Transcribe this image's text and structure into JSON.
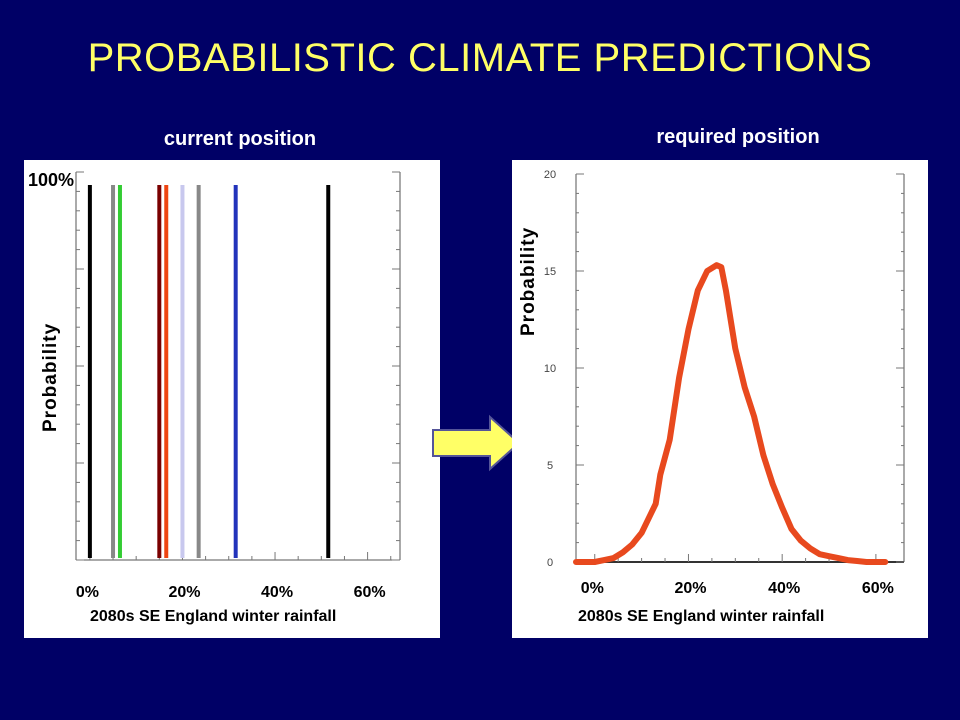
{
  "slide_title": "PROBABILISTIC CLIMATE PREDICTIONS",
  "arrow_icon": "right-arrow-icon",
  "colors": {
    "background": "#000066",
    "title": "#ffff66",
    "arrow_fill": "#ffff66",
    "arrow_stroke": "#555599",
    "curve": "#e8491e"
  },
  "chart_data": [
    {
      "type": "line",
      "panel_title": "current position",
      "marker_label": "100%",
      "ylabel": "Probability",
      "xlabel": "2080s SE England winter rainfall",
      "x_tick_labels": [
        "0%",
        "20%",
        "40%",
        "60%"
      ],
      "x_ticks": [
        0,
        20,
        40,
        60
      ],
      "xlim": [
        -3,
        67
      ],
      "ylim": [
        0,
        100
      ],
      "vertical_lines": [
        {
          "x": 0.0,
          "color": "#000000"
        },
        {
          "x": 5.0,
          "color": "#888888"
        },
        {
          "x": 6.5,
          "color": "#33cc33"
        },
        {
          "x": 15.0,
          "color": "#7a0000"
        },
        {
          "x": 16.5,
          "color": "#ee4411"
        },
        {
          "x": 20.0,
          "color": "#c8c8ee"
        },
        {
          "x": 23.5,
          "color": "#888888"
        },
        {
          "x": 31.5,
          "color": "#2233bb"
        },
        {
          "x": 51.5,
          "color": "#000000"
        }
      ]
    },
    {
      "type": "line",
      "panel_title": "required position",
      "ylabel": "Probability",
      "xlabel": "2080s SE England winter rainfall",
      "x_tick_labels": [
        "0%",
        "20%",
        "40%",
        "60%"
      ],
      "x_ticks": [
        0,
        20,
        40,
        60
      ],
      "y_tick_labels": [
        "0",
        "5",
        "10",
        "15",
        "20"
      ],
      "y_ticks": [
        0,
        5,
        10,
        15,
        20
      ],
      "xlim": [
        -4,
        66
      ],
      "ylim": [
        0,
        20
      ],
      "series": [
        {
          "x": [
            -4,
            0,
            2,
            4,
            6,
            8,
            10,
            12,
            13,
            14,
            16,
            18,
            20,
            22,
            24,
            26,
            27,
            28,
            30,
            32,
            34,
            36,
            38,
            40,
            42,
            44,
            46,
            48,
            50,
            52,
            54,
            56,
            58,
            60,
            62
          ],
          "y": [
            0,
            0,
            0.1,
            0.2,
            0.5,
            0.9,
            1.5,
            2.5,
            3.0,
            4.5,
            6.3,
            9.5,
            12.0,
            14.0,
            15.0,
            15.3,
            15.2,
            14.0,
            11.0,
            9.0,
            7.5,
            5.5,
            4.0,
            2.8,
            1.7,
            1.1,
            0.7,
            0.4,
            0.3,
            0.2,
            0.1,
            0.05,
            0,
            0,
            0
          ]
        }
      ]
    }
  ]
}
